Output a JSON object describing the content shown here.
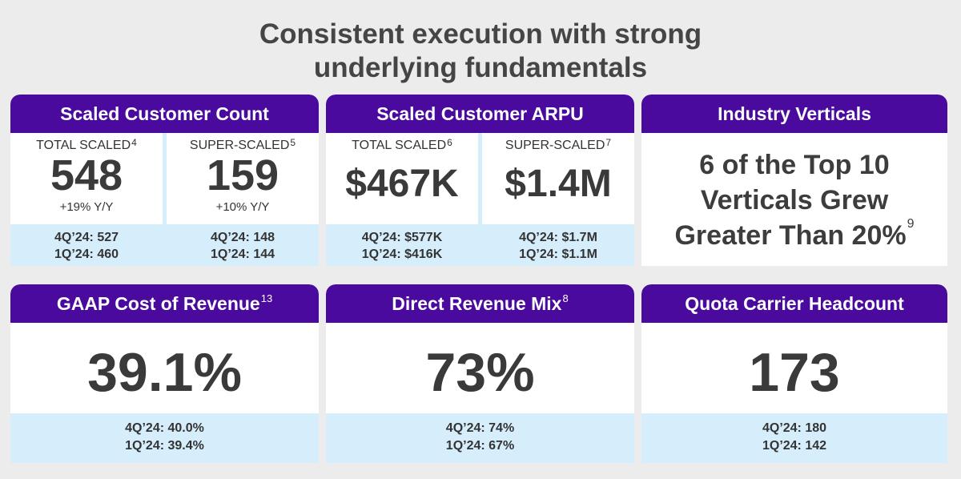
{
  "title": {
    "line1": "Consistent execution with strong",
    "line2": "underlying fundamentals"
  },
  "scaled_count": {
    "header": "Scaled Customer Count",
    "left": {
      "label": "TOTAL SCALED",
      "sup": "4",
      "value": "548",
      "yoy": "+19% Y/Y",
      "cmp1": "4Q’24: 527",
      "cmp2": "1Q’24: 460"
    },
    "right": {
      "label": "SUPER-SCALED",
      "sup": "5",
      "value": "159",
      "yoy": "+10% Y/Y",
      "cmp1": "4Q’24: 148",
      "cmp2": "1Q’24: 144"
    }
  },
  "scaled_arpu": {
    "header": "Scaled Customer ARPU",
    "left": {
      "label": "TOTAL SCALED",
      "sup": "6",
      "value": "$467K",
      "cmp1": "4Q’24: $577K",
      "cmp2": "1Q’24: $416K"
    },
    "right": {
      "label": "SUPER-SCALED",
      "sup": "7",
      "value": "$1.4M",
      "cmp1": "4Q’24: $1.7M",
      "cmp2": "1Q’24: $1.1M"
    }
  },
  "industry": {
    "header": "Industry Verticals",
    "line1": "6 of the Top 10",
    "line2": "Verticals Grew",
    "line3": "Greater Than 20%",
    "sup": "9"
  },
  "gaap": {
    "header": "GAAP Cost of Revenue",
    "sup": "13",
    "value": "39.1%",
    "cmp1": "4Q’24: 40.0%",
    "cmp2": "1Q’24: 39.4%"
  },
  "direct": {
    "header": "Direct Revenue Mix",
    "sup": "8",
    "value": "73%",
    "cmp1": "4Q’24: 74%",
    "cmp2": "1Q’24: 67%"
  },
  "quota": {
    "header": "Quota Carrier Headcount",
    "value": "173",
    "cmp1": "4Q’24: 180",
    "cmp2": "1Q’24: 142"
  },
  "colors": {
    "header_bg": "#4a0a9e",
    "compare_bg": "#d6eefc",
    "page_bg": "#ececec"
  }
}
